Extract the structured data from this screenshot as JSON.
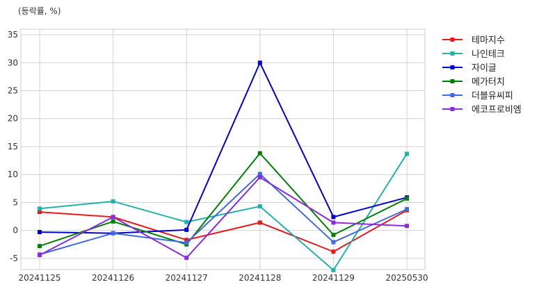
{
  "chart_data": {
    "type": "line",
    "unit_label": "(등락률, %)",
    "categories": [
      "20241125",
      "20241126",
      "20241127",
      "20241128",
      "20241129",
      "20250530"
    ],
    "ylim": [
      -7,
      36
    ],
    "yticks": [
      "-5",
      "0",
      "5",
      "10",
      "15",
      "20",
      "25",
      "30",
      "35"
    ],
    "grid": true,
    "legend_position": "right-top",
    "series": [
      {
        "name": "테마지수",
        "color": "#e41a1c",
        "values": [
          3.3,
          2.4,
          -1.7,
          1.4,
          -3.8,
          3.6
        ]
      },
      {
        "name": "나인테크",
        "color": "#20b2aa",
        "values": [
          3.9,
          5.2,
          1.5,
          4.3,
          -7.1,
          13.7
        ]
      },
      {
        "name": "자이글",
        "color": "#0000cd",
        "values": [
          -0.3,
          -0.5,
          0.1,
          30.0,
          2.4,
          5.9
        ]
      },
      {
        "name": "메가터치",
        "color": "#008000",
        "values": [
          -2.8,
          1.6,
          -2.5,
          13.8,
          -0.8,
          5.7
        ]
      },
      {
        "name": "더블유씨피",
        "color": "#4169e1",
        "values": [
          -4.3,
          -0.5,
          -2.2,
          10.1,
          -2.1,
          3.8
        ]
      },
      {
        "name": "에코프로비엠",
        "color": "#8a2be2",
        "values": [
          -4.4,
          2.4,
          -4.9,
          9.5,
          1.4,
          0.8
        ]
      }
    ]
  }
}
